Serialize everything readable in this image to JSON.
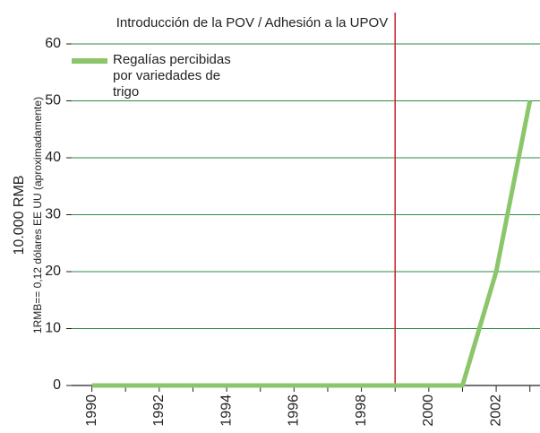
{
  "chart_data": {
    "type": "line",
    "y_label": "10.000 RMB",
    "y_sublabel": "1RMB== 0,12 dólares EE UU (aproximadamente)",
    "x": [
      1990,
      1991,
      1992,
      1993,
      1994,
      1995,
      1996,
      1997,
      1998,
      1999,
      2000,
      2001,
      2002,
      2003
    ],
    "series": [
      {
        "name": "Regalías percibidas por variedades de trigo",
        "color": "#8cc66b",
        "values": [
          0,
          0,
          0,
          0,
          0,
          0,
          0,
          0,
          0,
          0,
          0,
          0,
          20,
          50
        ]
      }
    ],
    "xlim": [
      1989.4,
      2003.3
    ],
    "xticks": [
      1990,
      1992,
      1994,
      1996,
      1998,
      2000,
      2002
    ],
    "xticks_minor": [
      1991,
      1993,
      1995,
      1997,
      1999,
      2001,
      2003
    ],
    "ylim": [
      0,
      60
    ],
    "yticks": [
      0,
      10,
      20,
      30,
      40,
      50,
      60
    ],
    "grid": true,
    "grid_color": "#2e8b46",
    "vline": {
      "x": 1999,
      "label": "Introducción de la POV / Adhesión a la UPOV",
      "color": "#c8202a"
    },
    "legend": "upper left"
  }
}
